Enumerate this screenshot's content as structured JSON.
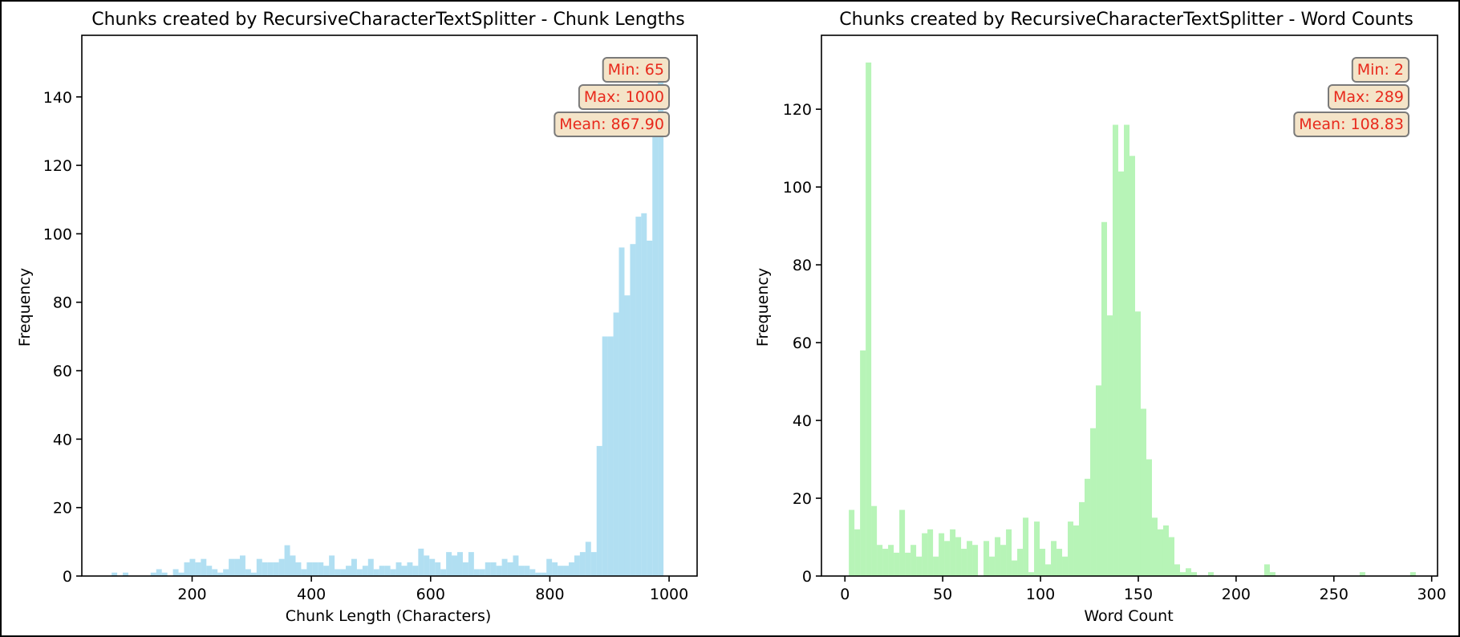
{
  "chart_data": [
    {
      "type": "histogram",
      "title": "Chunks created by RecursiveCharacterTextSplitter - Chunk Lengths",
      "xlabel": "Chunk Length (Characters)",
      "ylabel": "Frequency",
      "color": "#87ceeb",
      "xlim": [
        15,
        1047
      ],
      "ylim": [
        0,
        158
      ],
      "xticks": [
        200,
        400,
        600,
        800,
        1000
      ],
      "yticks": [
        0,
        20,
        40,
        60,
        80,
        100,
        120,
        140
      ],
      "bin_start": 65,
      "bin_width": 9.35,
      "counts": [
        1,
        0,
        1,
        0,
        0,
        0,
        0,
        1,
        2,
        1,
        0,
        2,
        1,
        4,
        5,
        4,
        5,
        3,
        2,
        1,
        2,
        5,
        5,
        6,
        2,
        1,
        5,
        4,
        4,
        4,
        5,
        9,
        6,
        4,
        2,
        4,
        4,
        4,
        3,
        6,
        2,
        2,
        3,
        5,
        2,
        3,
        5,
        2,
        3,
        3,
        2,
        4,
        3,
        4,
        3,
        8,
        6,
        5,
        4,
        2,
        7,
        6,
        7,
        4,
        7,
        2,
        2,
        4,
        4,
        3,
        5,
        4,
        6,
        3,
        3,
        2,
        1,
        1,
        5,
        4,
        3,
        3,
        4,
        6,
        7,
        10,
        7,
        38,
        70,
        70,
        77,
        96,
        82,
        97,
        105,
        106,
        98,
        130,
        150
      ],
      "stats": [
        {
          "label": "Min: 65"
        },
        {
          "label": "Max: 1000"
        },
        {
          "label": "Mean: 867.90"
        }
      ]
    },
    {
      "type": "histogram",
      "title": "Chunks created by RecursiveCharacterTextSplitter - Word Counts",
      "xlabel": "Word Count",
      "ylabel": "Frequency",
      "color": "#90ee90",
      "xlim": [
        -12,
        303
      ],
      "ylim": [
        0,
        139
      ],
      "xticks": [
        0,
        50,
        100,
        150,
        200,
        250,
        300
      ],
      "yticks": [
        0,
        20,
        40,
        60,
        80,
        100,
        120
      ],
      "bin_start": 2,
      "bin_width": 2.87,
      "counts": [
        17,
        12,
        58,
        132,
        18,
        8,
        7,
        8,
        6,
        17,
        6,
        8,
        5,
        11,
        12,
        5,
        11,
        9,
        12,
        10,
        7,
        9,
        8,
        0,
        9,
        5,
        10,
        8,
        12,
        4,
        7,
        15,
        1,
        14,
        7,
        3,
        9,
        7,
        5,
        14,
        13,
        19,
        25,
        38,
        49,
        91,
        67,
        116,
        104,
        116,
        108,
        68,
        43,
        30,
        15,
        12,
        13,
        10,
        3,
        1,
        2,
        1,
        0,
        0,
        1,
        0,
        0,
        0,
        0,
        0,
        0,
        0,
        0,
        0,
        3,
        1,
        0,
        0,
        0,
        0,
        0,
        0,
        0,
        0,
        0,
        0,
        0,
        0,
        0,
        0,
        0,
        1,
        0,
        0,
        0,
        0,
        0,
        0,
        0,
        0,
        1
      ],
      "stats": [
        {
          "label": "Min: 2"
        },
        {
          "label": "Max: 289"
        },
        {
          "label": "Mean: 108.83"
        }
      ]
    }
  ]
}
